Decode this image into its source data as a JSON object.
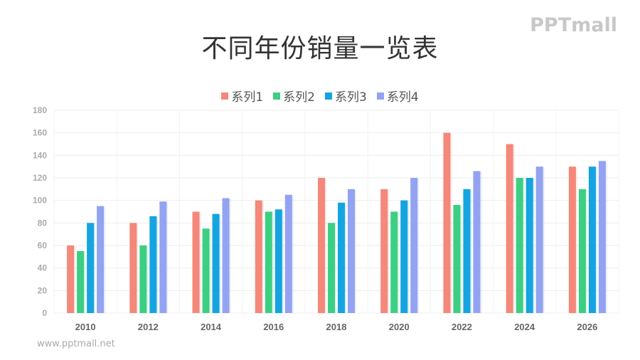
{
  "title": "不同年份销量一览表",
  "logo": "PPTmall",
  "footer": "www.pptmall.net",
  "legend": [
    {
      "label": "系列1",
      "color": "#f4887a"
    },
    {
      "label": "系列2",
      "color": "#3ccf83"
    },
    {
      "label": "系列3",
      "color": "#15a4e0"
    },
    {
      "label": "系列4",
      "color": "#93a3f2"
    }
  ],
  "chart_data": {
    "type": "bar",
    "title": "不同年份销量一览表",
    "xlabel": "",
    "ylabel": "",
    "categories": [
      "2010",
      "2012",
      "2014",
      "2016",
      "2018",
      "2020",
      "2022",
      "2024",
      "2026"
    ],
    "series": [
      {
        "name": "系列1",
        "color": "#f4887a",
        "values": [
          60,
          80,
          90,
          100,
          120,
          110,
          160,
          150,
          130
        ]
      },
      {
        "name": "系列2",
        "color": "#3ccf83",
        "values": [
          55,
          60,
          75,
          90,
          80,
          90,
          96,
          120,
          110
        ]
      },
      {
        "name": "系列3",
        "color": "#15a4e0",
        "values": [
          80,
          86,
          88,
          92,
          98,
          100,
          110,
          120,
          130
        ]
      },
      {
        "name": "系列4",
        "color": "#93a3f2",
        "values": [
          95,
          99,
          102,
          105,
          110,
          120,
          126,
          130,
          135
        ]
      }
    ],
    "ylim": [
      0,
      180
    ],
    "yticks": [
      0,
      20,
      40,
      60,
      80,
      100,
      120,
      140,
      160,
      180
    ],
    "grid": true,
    "legend_position": "top"
  }
}
